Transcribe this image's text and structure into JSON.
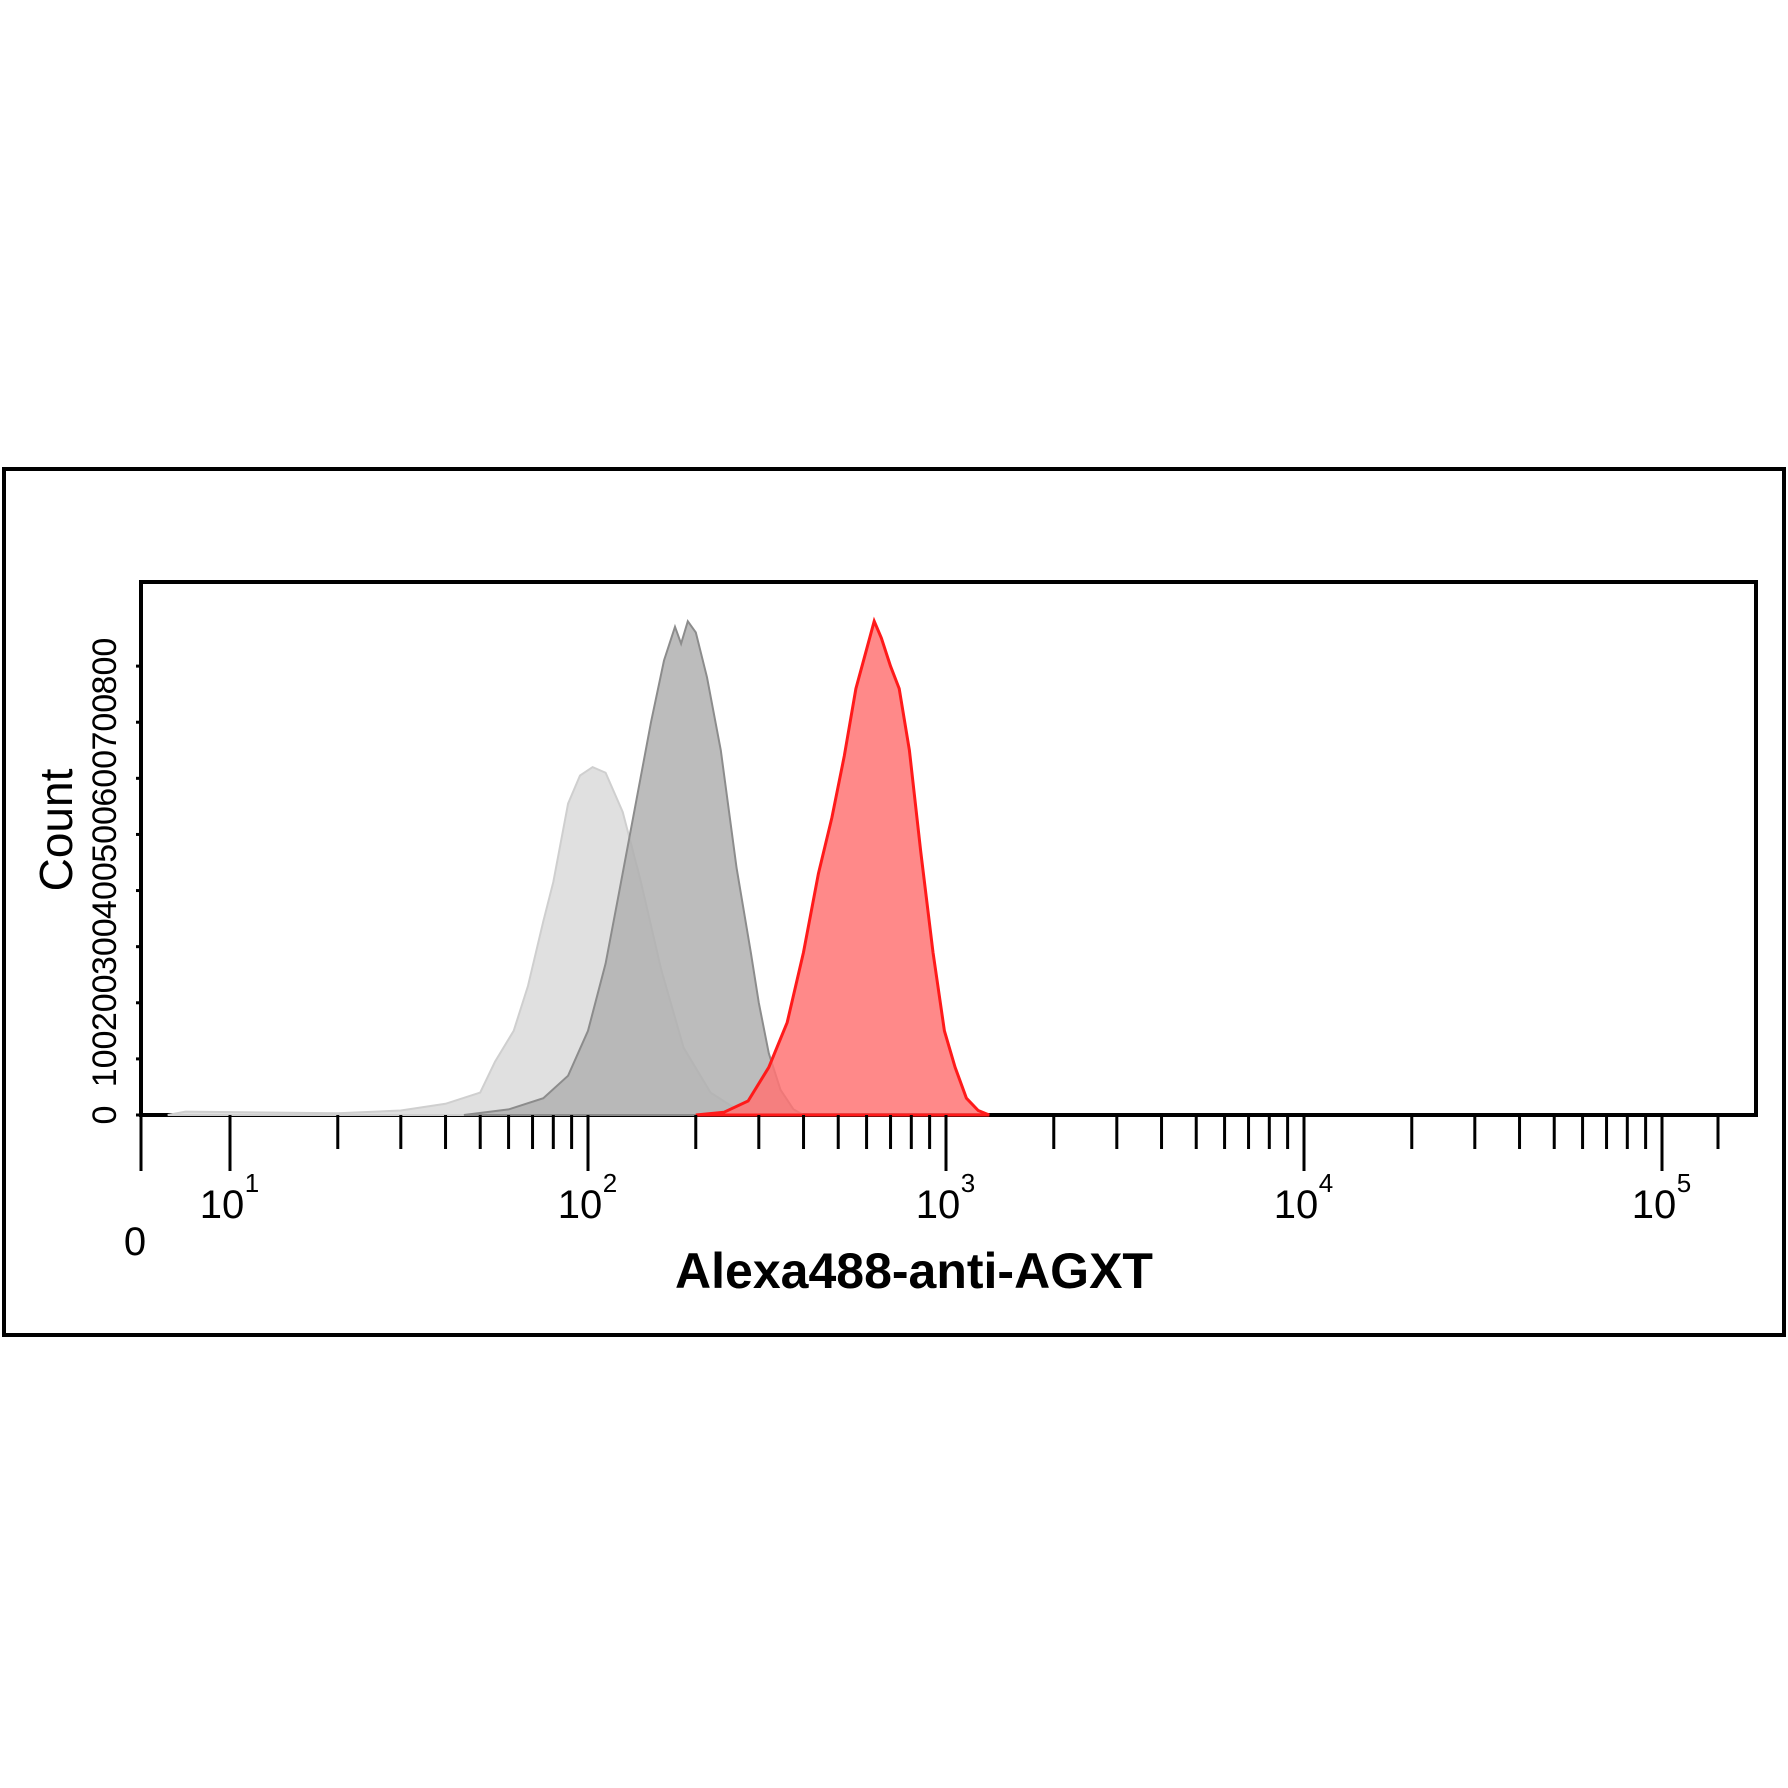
{
  "chart_data": {
    "type": "area",
    "xlabel": "Alexa488-anti-AGXT",
    "ylabel": "Count",
    "x_scale": "biexponential",
    "xlim": [
      0,
      250000
    ],
    "ylim": [
      0,
      900
    ],
    "x_ticks": [
      {
        "value": 0,
        "label": "0"
      },
      {
        "value": 10,
        "base": "10",
        "exp": "1"
      },
      {
        "value": 100,
        "base": "10",
        "exp": "2"
      },
      {
        "value": 1000,
        "base": "10",
        "exp": "3"
      },
      {
        "value": 10000,
        "base": "10",
        "exp": "4"
      },
      {
        "value": 100000,
        "base": "10",
        "exp": "5"
      }
    ],
    "y_ticks": [
      "0",
      "100",
      "200",
      "300",
      "400",
      "500",
      "600",
      "700",
      "800"
    ],
    "grid": false,
    "series": [
      {
        "color": "#e0e0e0",
        "stroke": "#cfcfcf",
        "points": [
          [
            3,
            0
          ],
          [
            5,
            6
          ],
          [
            20,
            3
          ],
          [
            30,
            8
          ],
          [
            40,
            20
          ],
          [
            50,
            40
          ],
          [
            55,
            95
          ],
          [
            62,
            150
          ],
          [
            68,
            230
          ],
          [
            75,
            345
          ],
          [
            80,
            415
          ],
          [
            88,
            555
          ],
          [
            95,
            605
          ],
          [
            103,
            620
          ],
          [
            112,
            610
          ],
          [
            125,
            540
          ],
          [
            140,
            420
          ],
          [
            160,
            260
          ],
          [
            185,
            120
          ],
          [
            220,
            40
          ],
          [
            260,
            10
          ],
          [
            300,
            2
          ],
          [
            340,
            0
          ]
        ]
      },
      {
        "color": "#b0b0b0",
        "stroke": "#8c8c8c",
        "points": [
          [
            45,
            0
          ],
          [
            60,
            10
          ],
          [
            75,
            30
          ],
          [
            88,
            70
          ],
          [
            100,
            150
          ],
          [
            112,
            270
          ],
          [
            122,
            395
          ],
          [
            135,
            545
          ],
          [
            150,
            700
          ],
          [
            163,
            810
          ],
          [
            175,
            870
          ],
          [
            182,
            840
          ],
          [
            190,
            880
          ],
          [
            200,
            860
          ],
          [
            215,
            780
          ],
          [
            235,
            650
          ],
          [
            260,
            440
          ],
          [
            285,
            290
          ],
          [
            300,
            200
          ],
          [
            320,
            110
          ],
          [
            345,
            45
          ],
          [
            375,
            10
          ],
          [
            400,
            0
          ]
        ]
      },
      {
        "color": "#ff7474",
        "stroke": "#ff1a1a",
        "points": [
          [
            200,
            0
          ],
          [
            240,
            5
          ],
          [
            280,
            25
          ],
          [
            320,
            85
          ],
          [
            360,
            165
          ],
          [
            400,
            290
          ],
          [
            440,
            430
          ],
          [
            480,
            530
          ],
          [
            520,
            640
          ],
          [
            560,
            760
          ],
          [
            600,
            830
          ],
          [
            630,
            880
          ],
          [
            660,
            850
          ],
          [
            700,
            800
          ],
          [
            740,
            760
          ],
          [
            790,
            650
          ],
          [
            850,
            470
          ],
          [
            920,
            290
          ],
          [
            990,
            150
          ],
          [
            1060,
            85
          ],
          [
            1140,
            30
          ],
          [
            1230,
            8
          ],
          [
            1320,
            0
          ]
        ]
      }
    ]
  }
}
